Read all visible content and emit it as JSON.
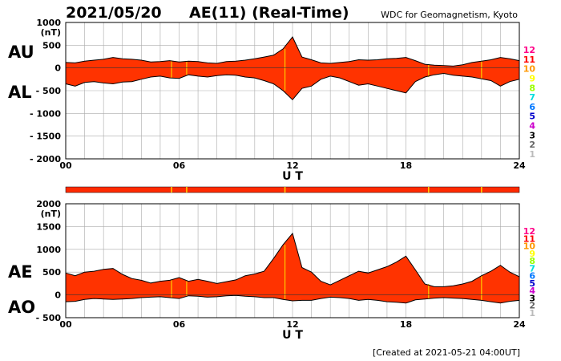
{
  "header": {
    "date": "2021/05/20",
    "title": "AE(11) (Real-Time)",
    "source": "WDC for Geomagnetism, Kyoto"
  },
  "footer": {
    "created": "[Created at 2021-05-21 04:00UT]"
  },
  "colors": {
    "fill_main": "#ff3300",
    "fill_highlight": "#ffcc00",
    "outline": "#000000",
    "grid": "#aaaaaa",
    "strip": "#ff2a00"
  },
  "legend": {
    "items": [
      {
        "label": "12",
        "color": "#ff0088"
      },
      {
        "label": "11",
        "color": "#ff0000"
      },
      {
        "label": "10",
        "color": "#ff9900"
      },
      {
        "label": "9",
        "color": "#ffff00"
      },
      {
        "label": "8",
        "color": "#99ff00"
      },
      {
        "label": "7",
        "color": "#00dddd"
      },
      {
        "label": "6",
        "color": "#0077ff"
      },
      {
        "label": "5",
        "color": "#0000cc"
      },
      {
        "label": "4",
        "color": "#cc00cc"
      },
      {
        "label": "3",
        "color": "#000000"
      },
      {
        "label": "2",
        "color": "#666666"
      },
      {
        "label": "1",
        "color": "#bbbbbb"
      }
    ]
  },
  "chart_data": [
    {
      "type": "area",
      "name": "AU/AL",
      "series": [
        {
          "name": "AU"
        },
        {
          "name": "AL"
        }
      ],
      "xlabel": "U T",
      "ylabel": "(nT)",
      "ylim": [
        -2000,
        1000
      ],
      "yticks": [
        1000,
        500,
        0,
        -500,
        -1000,
        -1500,
        -2000
      ],
      "ytick_labels": [
        "1000",
        "500",
        "0",
        "- 500",
        "- 1000",
        "- 1500",
        "- 2000"
      ],
      "xlim": [
        0,
        24
      ],
      "xticks": [
        0,
        6,
        12,
        18,
        24
      ],
      "xtick_labels": [
        "00",
        "06",
        "12",
        "18",
        "24"
      ],
      "grid": true,
      "x": [
        0,
        0.5,
        1,
        1.5,
        2,
        2.5,
        3,
        3.5,
        4,
        4.5,
        5,
        5.5,
        6,
        6.5,
        7,
        7.5,
        8,
        8.5,
        9,
        9.5,
        10,
        10.5,
        11,
        11.5,
        12,
        12.5,
        13,
        13.5,
        14,
        14.5,
        15,
        15.5,
        16,
        16.5,
        17,
        17.5,
        18,
        18.5,
        19,
        19.5,
        20,
        20.5,
        21,
        21.5,
        22,
        22.5,
        23,
        23.5,
        24
      ],
      "upper": [
        120,
        110,
        150,
        170,
        190,
        230,
        200,
        190,
        170,
        130,
        140,
        160,
        130,
        150,
        140,
        110,
        100,
        140,
        150,
        170,
        200,
        240,
        280,
        420,
        680,
        240,
        180,
        110,
        100,
        120,
        140,
        180,
        170,
        180,
        200,
        210,
        230,
        160,
        80,
        60,
        50,
        40,
        70,
        120,
        150,
        180,
        230,
        200,
        160
      ],
      "lower": [
        -350,
        -400,
        -320,
        -300,
        -330,
        -350,
        -310,
        -300,
        -250,
        -200,
        -180,
        -220,
        -230,
        -150,
        -180,
        -200,
        -170,
        -150,
        -160,
        -200,
        -220,
        -280,
        -350,
        -500,
        -700,
        -450,
        -400,
        -250,
        -180,
        -220,
        -300,
        -380,
        -350,
        -400,
        -450,
        -500,
        -550,
        -300,
        -200,
        -150,
        -120,
        -160,
        -180,
        -200,
        -240,
        -280,
        -400,
        -300,
        -250
      ],
      "highlights": [
        5.6,
        6.4,
        11.6,
        19.2,
        22.0
      ]
    },
    {
      "type": "area",
      "name": "AE/AO",
      "series": [
        {
          "name": "AE"
        },
        {
          "name": "AO"
        }
      ],
      "xlabel": "U T",
      "ylabel": "(nT)",
      "ylim": [
        -500,
        2000
      ],
      "yticks": [
        2000,
        1500,
        1000,
        500,
        0,
        -500
      ],
      "ytick_labels": [
        "2000",
        "1500",
        "1000",
        "500",
        "0",
        "- 500"
      ],
      "xlim": [
        0,
        24
      ],
      "xticks": [
        0,
        6,
        12,
        18,
        24
      ],
      "xtick_labels": [
        "00",
        "06",
        "12",
        "18",
        "24"
      ],
      "grid": true,
      "x": [
        0,
        0.5,
        1,
        1.5,
        2,
        2.5,
        3,
        3.5,
        4,
        4.5,
        5,
        5.5,
        6,
        6.5,
        7,
        7.5,
        8,
        8.5,
        9,
        9.5,
        10,
        10.5,
        11,
        11.5,
        12,
        12.5,
        13,
        13.5,
        14,
        14.5,
        15,
        15.5,
        16,
        16.5,
        17,
        17.5,
        18,
        18.5,
        19,
        19.5,
        20,
        20.5,
        21,
        21.5,
        22,
        22.5,
        23,
        23.5,
        24
      ],
      "upper": [
        480,
        420,
        500,
        520,
        560,
        580,
        450,
        360,
        320,
        260,
        300,
        320,
        380,
        300,
        340,
        300,
        250,
        290,
        330,
        420,
        460,
        520,
        800,
        1100,
        1350,
        600,
        500,
        300,
        220,
        320,
        420,
        520,
        480,
        550,
        620,
        720,
        850,
        550,
        240,
        180,
        180,
        200,
        240,
        300,
        420,
        520,
        650,
        500,
        400
      ],
      "lower": [
        -150,
        -140,
        -100,
        -80,
        -90,
        -100,
        -90,
        -80,
        -60,
        -50,
        -40,
        -60,
        -80,
        -20,
        -30,
        -50,
        -40,
        -20,
        -10,
        -30,
        -40,
        -60,
        -60,
        -100,
        -130,
        -120,
        -120,
        -80,
        -50,
        -60,
        -80,
        -120,
        -100,
        -120,
        -150,
        -160,
        -180,
        -110,
        -90,
        -70,
        -60,
        -70,
        -80,
        -100,
        -120,
        -150,
        -180,
        -140,
        -120
      ],
      "highlights": [
        5.6,
        6.4,
        11.6,
        19.2,
        22.0
      ]
    }
  ]
}
